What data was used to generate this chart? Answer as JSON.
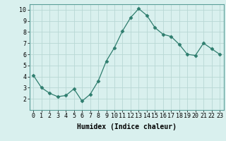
{
  "x": [
    0,
    1,
    2,
    3,
    4,
    5,
    6,
    7,
    8,
    9,
    10,
    11,
    12,
    13,
    14,
    15,
    16,
    17,
    18,
    19,
    20,
    21,
    22,
    23
  ],
  "y": [
    4.1,
    3.0,
    2.5,
    2.2,
    2.3,
    2.9,
    1.8,
    2.4,
    3.6,
    5.4,
    6.6,
    8.1,
    9.3,
    10.1,
    9.5,
    8.4,
    7.8,
    7.6,
    6.9,
    6.0,
    5.9,
    7.0,
    6.5,
    6.0
  ],
  "line_color": "#2e7d6e",
  "marker": "D",
  "marker_size": 2.5,
  "bg_color": "#d9f0ee",
  "grid_color": "#b8d8d4",
  "xlabel": "Humidex (Indice chaleur)",
  "xlim": [
    -0.5,
    23.5
  ],
  "ylim": [
    1.0,
    10.5
  ],
  "yticks": [
    2,
    3,
    4,
    5,
    6,
    7,
    8,
    9,
    10
  ],
  "xticks": [
    0,
    1,
    2,
    3,
    4,
    5,
    6,
    7,
    8,
    9,
    10,
    11,
    12,
    13,
    14,
    15,
    16,
    17,
    18,
    19,
    20,
    21,
    22,
    23
  ],
  "axis_label_fontsize": 7,
  "tick_fontsize": 6
}
